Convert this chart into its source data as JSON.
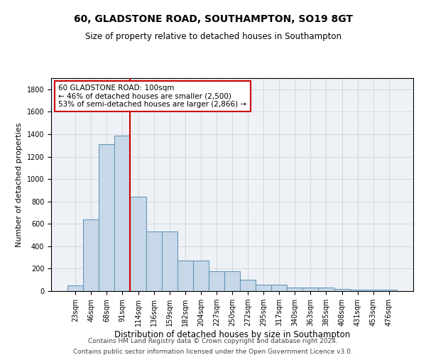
{
  "title": "60, GLADSTONE ROAD, SOUTHAMPTON, SO19 8GT",
  "subtitle": "Size of property relative to detached houses in Southampton",
  "xlabel": "Distribution of detached houses by size in Southampton",
  "ylabel": "Number of detached properties",
  "categories": [
    "23sqm",
    "46sqm",
    "68sqm",
    "91sqm",
    "114sqm",
    "136sqm",
    "159sqm",
    "182sqm",
    "204sqm",
    "227sqm",
    "250sqm",
    "272sqm",
    "295sqm",
    "317sqm",
    "340sqm",
    "363sqm",
    "385sqm",
    "408sqm",
    "431sqm",
    "453sqm",
    "476sqm"
  ],
  "values": [
    50,
    640,
    1310,
    1390,
    840,
    530,
    530,
    270,
    270,
    180,
    180,
    100,
    60,
    60,
    30,
    30,
    30,
    20,
    10,
    10,
    10
  ],
  "bar_color": "#c8d8e8",
  "bar_edge_color": "#6699bb",
  "bar_linewidth": 0.8,
  "vline_x_idx": 3,
  "vline_color": "#cc0000",
  "vline_linewidth": 1.5,
  "annotation_line1": "60 GLADSTONE ROAD: 100sqm",
  "annotation_line2": "← 46% of detached houses are smaller (2,500)",
  "annotation_line3": "53% of semi-detached houses are larger (2,866) →",
  "annotation_box_color": "#ffffff",
  "annotation_box_edge": "#cc0000",
  "ylim": [
    0,
    1900
  ],
  "yticks": [
    0,
    200,
    400,
    600,
    800,
    1000,
    1200,
    1400,
    1600,
    1800
  ],
  "grid_color": "#cccccc",
  "bg_color": "#eef2f7",
  "footer_line1": "Contains HM Land Registry data © Crown copyright and database right 2024.",
  "footer_line2": "Contains public sector information licensed under the Open Government Licence v3.0.",
  "title_fontsize": 10,
  "subtitle_fontsize": 8.5,
  "xlabel_fontsize": 8.5,
  "ylabel_fontsize": 8,
  "tick_fontsize": 7,
  "annotation_fontsize": 7.5,
  "footer_fontsize": 6.5
}
